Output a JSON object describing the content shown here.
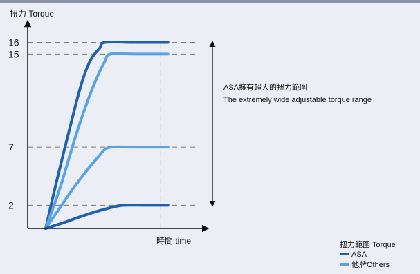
{
  "chart_data": {
    "type": "line",
    "ylabel": "扭力 Torque",
    "xlabel": "時間 time",
    "y_ticks": [
      16,
      15,
      7,
      2
    ],
    "ylim": [
      0,
      19
    ],
    "xlim": [
      0,
      10
    ],
    "series": [
      {
        "group": "ASA",
        "color": "#2060ad",
        "level": 16,
        "x": [
          1,
          1.6,
          2.4,
          3.0,
          3.5,
          4.0,
          4.3,
          6.0,
          7.8
        ],
        "y": [
          0,
          4.0,
          9.0,
          12.5,
          14.5,
          15.5,
          16,
          16,
          16
        ]
      },
      {
        "group": "他牌Others",
        "color": "#5aa3e3",
        "level": 15,
        "x": [
          1,
          1.8,
          2.6,
          3.2,
          3.8,
          4.3,
          4.6,
          6.0,
          7.8
        ],
        "y": [
          0,
          3.5,
          7.6,
          10.4,
          12.8,
          14.4,
          15,
          15,
          15
        ]
      },
      {
        "group": "他牌Others",
        "color": "#5aa3e3",
        "level": 7,
        "x": [
          1,
          1.8,
          2.6,
          3.4,
          4.0,
          4.3,
          4.7,
          6.0,
          7.8
        ],
        "y": [
          0,
          1.8,
          3.6,
          5.2,
          6.3,
          6.8,
          7,
          7,
          7
        ]
      },
      {
        "group": "ASA",
        "color": "#2060ad",
        "level": 2,
        "x": [
          1,
          2.0,
          3.0,
          3.8,
          4.5,
          5.0,
          5.4,
          6.5,
          7.8
        ],
        "y": [
          0,
          0.5,
          1.05,
          1.45,
          1.75,
          1.93,
          2,
          2,
          2
        ]
      }
    ],
    "time_marker_x": 7.4,
    "annotation": {
      "line1": "ASA擁有超大的扭力範圍",
      "line2": "The extremely wide adjustable torque range",
      "range": [
        2,
        16
      ]
    },
    "legend": {
      "title": "扭力範圍 Torque",
      "items": [
        {
          "label": "ASA",
          "color": "#2060ad"
        },
        {
          "label": "他牌Others",
          "color": "#5aa3e3"
        }
      ]
    }
  }
}
